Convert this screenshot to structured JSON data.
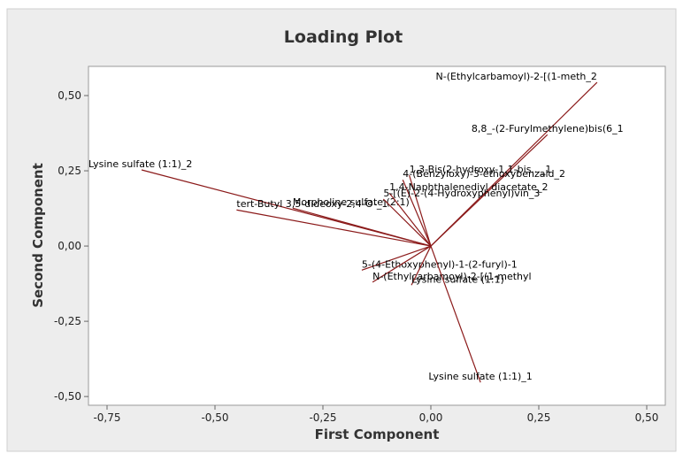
{
  "chart_data": {
    "type": "loading",
    "title": "Loading Plot",
    "x_label": "First Component",
    "y_label": "Second Component",
    "color": "#8b1a1a",
    "xlim": [
      -0.793,
      0.543
    ],
    "ylim": [
      -0.529,
      0.597
    ],
    "xticks": [
      {
        "value": -0.75,
        "label": "-0,75"
      },
      {
        "value": -0.5,
        "label": "-0,50"
      },
      {
        "value": -0.25,
        "label": "-0,25"
      },
      {
        "value": 0,
        "label": "0,00"
      },
      {
        "value": 0.25,
        "label": "0,25"
      },
      {
        "value": 0.5,
        "label": "0,50"
      }
    ],
    "yticks": [
      {
        "value": -0.5,
        "label": "-0,50"
      },
      {
        "value": -0.25,
        "label": "-0,25"
      },
      {
        "value": 0,
        "label": "0,00"
      },
      {
        "value": 0.25,
        "label": "0,25"
      },
      {
        "value": 0.5,
        "label": "0,50"
      }
    ],
    "labels": [
      "N-(Ethylcarbamoyl)-2-[(1-meth_2",
      "8,8_-(2-Furylmethylene)bis(6_1",
      "Lysine sulfate (1:1)_2",
      "Morpholine sulfate (2:1)",
      "tert-Butyl 3,5-dideoxy-2,4-O-_1",
      "1,3-Bis(2-hydroxy-1,1-bis..._1",
      "4-(Benzyloxy)-3-ethoxybenzald_2",
      "1,4-Naphthalenediyl diacetate_2",
      "5-[(E)-2-(4-Hydroxyphenyl)vin_3",
      "5-(4-Ethoxyphenyl)-1-(2-furyl)-1",
      "N-(Ethylcarbamoyl)-2-[(1-methyl",
      "Lysine sulfate (1:1)",
      "Lysine sulfate (1:1)_1"
    ],
    "x": [
      0.385,
      0.27,
      -0.67,
      -0.32,
      -0.45,
      -0.05,
      -0.065,
      -0.096,
      -0.11,
      -0.16,
      -0.135,
      -0.045,
      0.115
    ],
    "y": [
      0.544,
      0.37,
      0.253,
      0.126,
      0.12,
      0.235,
      0.22,
      0.176,
      0.156,
      -0.08,
      -0.12,
      -0.13,
      -0.453
    ]
  }
}
